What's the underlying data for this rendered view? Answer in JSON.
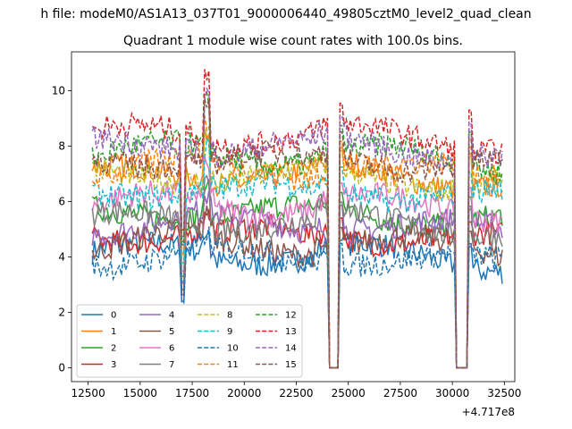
{
  "figure": {
    "suptitle": "h file: modeM0/AS1A13_037T01_9000006440_49805cztM0_level2_quad_clean",
    "title": "Quadrant 1 module wise count rates with 100.0s bins."
  },
  "chart_data": {
    "type": "line",
    "title": "Quadrant 1 module wise count rates with 100.0s bins.",
    "xlabel": "",
    "ylabel": "",
    "x_offset_label": "+4.717e8",
    "xlim": [
      11700,
      33000
    ],
    "ylim": [
      -0.5,
      11.4
    ],
    "xticks": [
      12500,
      15000,
      17500,
      20000,
      22500,
      25000,
      27500,
      30000,
      32500
    ],
    "yticks": [
      0,
      2,
      4,
      6,
      8,
      10
    ],
    "legend_loc": "lower-left",
    "legend_ncol": 4,
    "x_start": 12700,
    "x_end": 32400,
    "bin_width": 100,
    "gaps": [
      [
        24100,
        24550
      ],
      [
        30150,
        30750
      ]
    ],
    "series": [
      {
        "name": "0",
        "color": "#1f77b4",
        "dash": "solid",
        "base": 4.0
      },
      {
        "name": "1",
        "color": "#ff7f0e",
        "dash": "solid",
        "base": 6.9
      },
      {
        "name": "2",
        "color": "#2ca02c",
        "dash": "solid",
        "base": 5.5
      },
      {
        "name": "3",
        "color": "#d62728",
        "dash": "solid",
        "base": 4.7
      },
      {
        "name": "4",
        "color": "#9467bd",
        "dash": "solid",
        "base": 5.1
      },
      {
        "name": "5",
        "color": "#8c564b",
        "dash": "solid",
        "base": 4.4
      },
      {
        "name": "6",
        "color": "#e377c2",
        "dash": "solid",
        "base": 5.8
      },
      {
        "name": "7",
        "color": "#7f7f7f",
        "dash": "solid",
        "base": 5.2
      },
      {
        "name": "8",
        "color": "#bcbd22",
        "dash": "dashed",
        "base": 6.8
      },
      {
        "name": "9",
        "color": "#17becf",
        "dash": "dashed",
        "base": 6.3
      },
      {
        "name": "10",
        "color": "#1f77b4",
        "dash": "dashed",
        "base": 3.9
      },
      {
        "name": "11",
        "color": "#ff7f0e",
        "dash": "dashed",
        "base": 7.1
      },
      {
        "name": "12",
        "color": "#2ca02c",
        "dash": "dashed",
        "base": 7.6
      },
      {
        "name": "13",
        "color": "#d62728",
        "dash": "dashed",
        "base": 8.3
      },
      {
        "name": "14",
        "color": "#9467bd",
        "dash": "dashed",
        "base": 7.9
      },
      {
        "name": "15",
        "color": "#8c564b",
        "dash": "dashed",
        "base": 7.4
      }
    ]
  }
}
